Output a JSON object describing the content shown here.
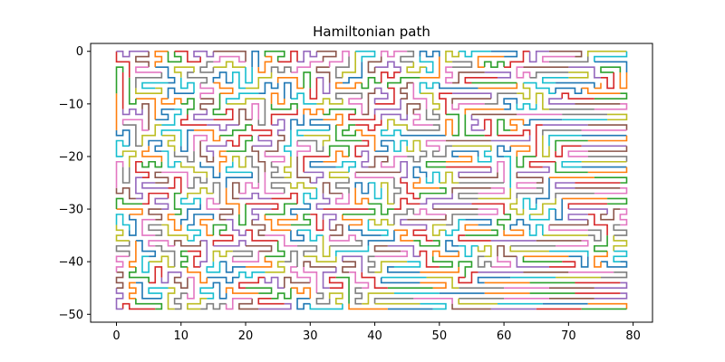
{
  "chart_data": {
    "type": "line",
    "title": "Hamiltonian path",
    "xlabel": "",
    "ylabel": "",
    "xlim": [
      -4,
      83
    ],
    "ylim": [
      -51.5,
      1.5
    ],
    "grid_cols": 80,
    "grid_rows": 50,
    "segment_length": 7,
    "xticks": [
      0,
      10,
      20,
      30,
      40,
      50,
      60,
      70,
      80
    ],
    "yticks": [
      0,
      -10,
      -20,
      -30,
      -40,
      -50
    ],
    "grid": false,
    "legend": "none",
    "palette": [
      "#1f77b4",
      "#ff7f0e",
      "#2ca02c",
      "#d62728",
      "#9467bd",
      "#8c564b",
      "#e377c2",
      "#7f7f7f",
      "#bcbd22",
      "#17becf"
    ]
  }
}
